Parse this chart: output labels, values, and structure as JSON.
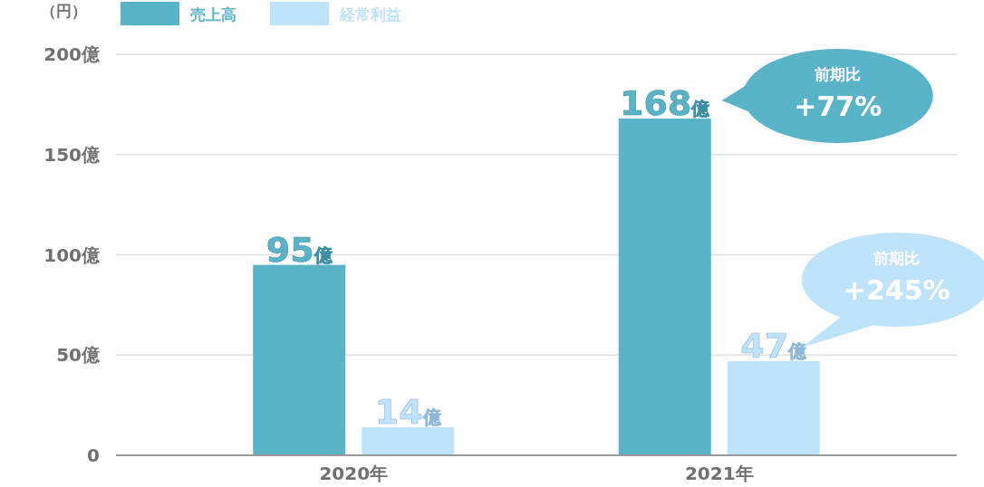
{
  "chart_data": {
    "type": "bar",
    "ylabel": "（円）",
    "categories": [
      "2020年",
      "2021年"
    ],
    "series": [
      {
        "name": "売上高",
        "color": "#5ab4c8",
        "values": [
          95,
          168
        ],
        "value_labels": [
          "95億",
          "168億"
        ]
      },
      {
        "name": "経常利益",
        "color": "#bfe3fb",
        "values": [
          14,
          47
        ],
        "value_labels": [
          "14億",
          "47億"
        ]
      }
    ],
    "ylim": [
      0,
      200
    ],
    "yticks": [
      {
        "value": 0,
        "label": "0"
      },
      {
        "value": 50,
        "label": "50億"
      },
      {
        "value": 100,
        "label": "100億"
      },
      {
        "value": 150,
        "label": "150億"
      },
      {
        "value": 200,
        "label": "200億"
      }
    ],
    "grid": "y",
    "legend": "top left",
    "annotations": [
      "前期比\n+77%",
      "前期比\n+245%"
    ]
  }
}
